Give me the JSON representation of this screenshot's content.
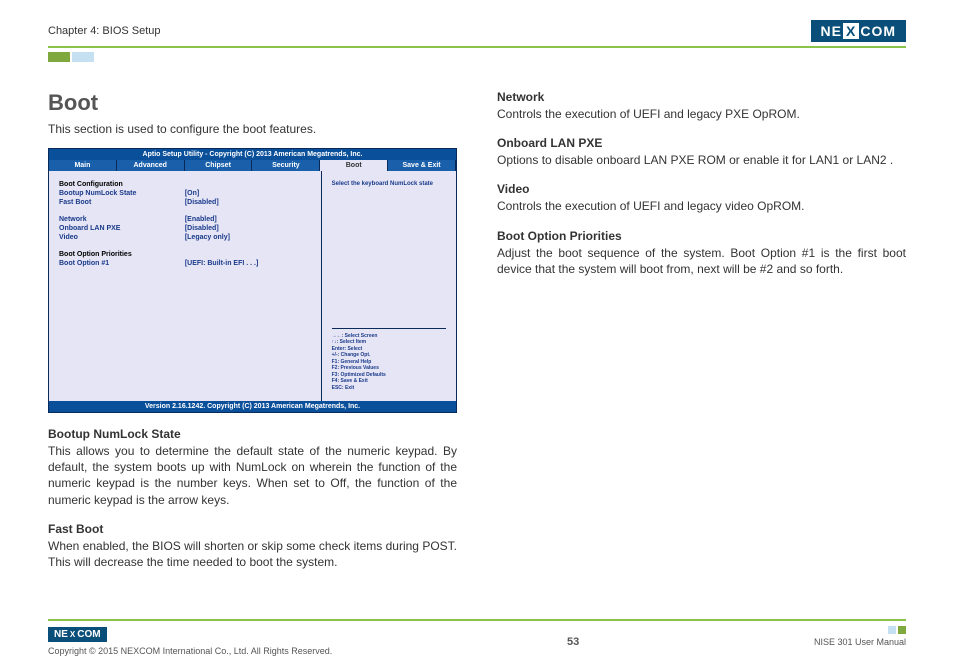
{
  "header": {
    "chapter": "Chapter 4: BIOS Setup",
    "logo_pre": "NE",
    "logo_x": "X",
    "logo_post": "COM"
  },
  "left": {
    "title": "Boot",
    "intro": "This section is used to configure the boot features.",
    "bios": {
      "top": "Aptio Setup Utility - Copyright (C) 2013 American Megatrends, Inc.",
      "tabs": [
        "Main",
        "Advanced",
        "Chipset",
        "Security",
        "Boot",
        "Save & Exit"
      ],
      "active_tab": 4,
      "section1": "Boot Configuration",
      "items": [
        {
          "label": "Bootup NumLock State",
          "val": "[On]"
        },
        {
          "label": "Fast Boot",
          "val": "[Disabled]"
        }
      ],
      "items2": [
        {
          "label": "Network",
          "val": "[Enabled]"
        },
        {
          "label": "Onboard LAN PXE",
          "val": "[Disabled]"
        },
        {
          "label": "Video",
          "val": "[Legacy only]"
        }
      ],
      "section2": "Boot Option Priorities",
      "items3": [
        {
          "label": "Boot Option #1",
          "val": "[UEFI: Built-in EFI . . .]"
        }
      ],
      "help": "Select the keyboard NumLock state",
      "keys": "→←: Select Screen\n↑↓: Select Item\nEnter: Select\n+/-: Change Opt.\nF1: General Help\nF2: Previous Values\nF3: Optimized Defaults\nF4: Save & Exit\nESC: Exit",
      "version": "Version 2.16.1242. Copyright (C) 2013 American Megatrends, Inc."
    },
    "s1_h": "Bootup NumLock State",
    "s1_p": "This allows you to determine the default state of the numeric keypad. By default, the system boots up with NumLock on wherein the function of the numeric keypad is the number keys. When set to Off, the function of the numeric keypad is the arrow keys.",
    "s2_h": "Fast Boot",
    "s2_p": "When enabled, the BIOS will shorten or skip some check items during POST. This will decrease the time needed to boot the system."
  },
  "right": {
    "s1_h": "Network",
    "s1_p": "Controls the execution of UEFI and legacy PXE OpROM.",
    "s2_h": "Onboard LAN PXE",
    "s2_p": "Options to disable onboard LAN PXE ROM or enable it for LAN1 or LAN2 .",
    "s3_h": "Video",
    "s3_p": "Controls the execution of UEFI and legacy video OpROM.",
    "s4_h": "Boot Option Priorities",
    "s4_p": "Adjust the boot sequence of the system. Boot Option #1 is the first boot device that the system will boot from, next will be #2 and so forth."
  },
  "footer": {
    "copyright": "Copyright © 2015 NEXCOM International Co., Ltd. All Rights Reserved.",
    "page": "53",
    "manual": "NISE 301 User Manual"
  }
}
